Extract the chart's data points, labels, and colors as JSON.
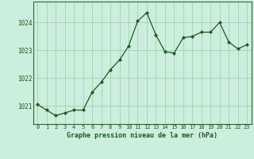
{
  "x": [
    0,
    1,
    2,
    3,
    4,
    5,
    6,
    7,
    8,
    9,
    10,
    11,
    12,
    13,
    14,
    15,
    16,
    17,
    18,
    19,
    20,
    21,
    22,
    23
  ],
  "y": [
    1021.05,
    1020.85,
    1020.65,
    1020.75,
    1020.85,
    1020.85,
    1021.5,
    1021.85,
    1022.3,
    1022.65,
    1023.15,
    1024.05,
    1024.35,
    1023.55,
    1022.95,
    1022.9,
    1023.45,
    1023.5,
    1023.65,
    1023.65,
    1024.0,
    1023.3,
    1023.05,
    1023.2
  ],
  "line_color": "#1a5c1a",
  "marker_color": "#1a5c1a",
  "bg_color": "#cceedd",
  "grid_color": "#99ccaa",
  "axis_border_color": "#336633",
  "xlabel": "Graphe pression niveau de la mer (hPa)",
  "xlabel_color": "#1a5c1a",
  "tick_color": "#1a5c1a",
  "ylim": [
    1020.35,
    1024.75
  ],
  "yticks": [
    1021,
    1022,
    1023,
    1024
  ],
  "xticks": [
    0,
    1,
    2,
    3,
    4,
    5,
    6,
    7,
    8,
    9,
    10,
    11,
    12,
    13,
    14,
    15,
    16,
    17,
    18,
    19,
    20,
    21,
    22,
    23
  ]
}
